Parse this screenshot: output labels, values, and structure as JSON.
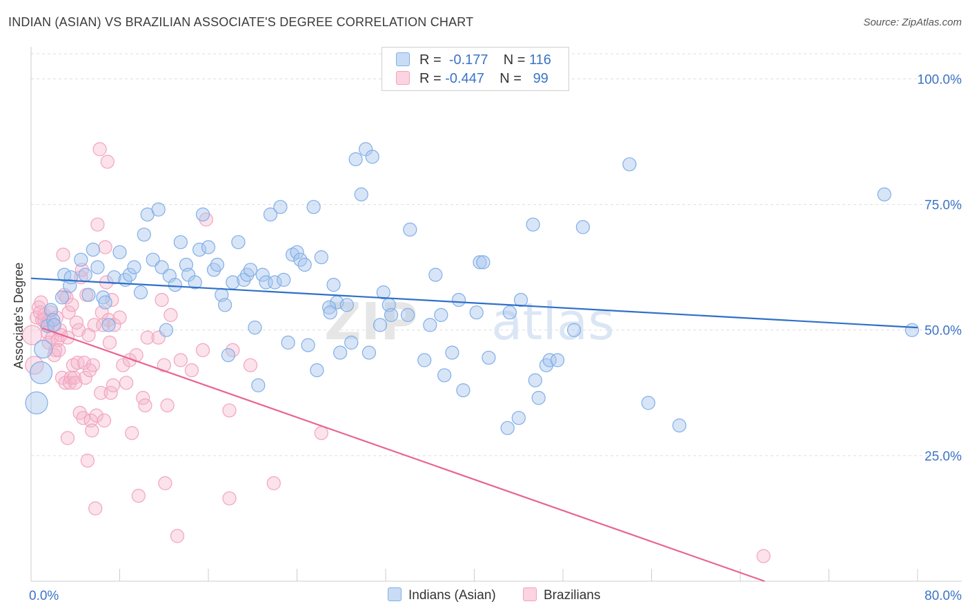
{
  "chart_data": {
    "type": "scatter",
    "title": "INDIAN (ASIAN) VS BRAZILIAN ASSOCIATE'S DEGREE CORRELATION CHART",
    "source": "Source: ZipAtlas.com",
    "xlabel": "",
    "ylabel": "Associate's Degree",
    "xlim": [
      0,
      80
    ],
    "ylim": [
      0,
      105
    ],
    "x_tick_labels": {
      "left": "0.0%",
      "right": "80.0%"
    },
    "y_ticks": [
      {
        "value": 100,
        "label": "100.0%"
      },
      {
        "value": 75,
        "label": "75.0%"
      },
      {
        "value": 50,
        "label": "50.0%"
      },
      {
        "value": 25,
        "label": "25.0%"
      }
    ],
    "watermark": "ZIPatlas",
    "legend": [
      {
        "r_label": "R =",
        "r_value": "-0.177",
        "n_label": "N =",
        "n_value": "116",
        "color": "#a9c6ee"
      },
      {
        "r_label": "R =",
        "r_value": "-0.447",
        "n_label": "N =",
        "n_value": "99",
        "color": "#f5b7cc"
      }
    ],
    "series": [
      {
        "name": "Indians (Asian)",
        "color": "#7faee8",
        "line_color": "#2f6fc9",
        "trend": {
          "x": [
            0,
            80
          ],
          "y": [
            60.3,
            50.5
          ]
        },
        "points": [
          [
            0.5,
            35.5
          ],
          [
            0.9,
            41.5
          ],
          [
            1.1,
            46.2
          ],
          [
            1.5,
            50.8
          ],
          [
            1.8,
            54.0
          ],
          [
            2.0,
            52.0
          ],
          [
            2.1,
            51.0
          ],
          [
            2.8,
            56.5
          ],
          [
            3.0,
            61.0
          ],
          [
            3.5,
            58.8
          ],
          [
            3.6,
            60.5
          ],
          [
            4.5,
            64.0
          ],
          [
            4.9,
            61.0
          ],
          [
            5.2,
            57.0
          ],
          [
            5.6,
            66.0
          ],
          [
            6.0,
            62.5
          ],
          [
            6.5,
            56.5
          ],
          [
            6.7,
            55.5
          ],
          [
            7.0,
            51.0
          ],
          [
            7.5,
            60.5
          ],
          [
            8.0,
            65.5
          ],
          [
            8.5,
            60.0
          ],
          [
            8.9,
            61.0
          ],
          [
            9.3,
            62.5
          ],
          [
            9.9,
            57.5
          ],
          [
            10.2,
            69.0
          ],
          [
            10.5,
            73.0
          ],
          [
            11.0,
            64.0
          ],
          [
            11.5,
            74.0
          ],
          [
            11.8,
            62.5
          ],
          [
            12.2,
            50.0
          ],
          [
            12.5,
            60.8
          ],
          [
            13.0,
            59.0
          ],
          [
            13.5,
            67.5
          ],
          [
            14.0,
            63.0
          ],
          [
            14.2,
            61.0
          ],
          [
            14.8,
            59.5
          ],
          [
            15.2,
            66.0
          ],
          [
            15.5,
            73.0
          ],
          [
            16.0,
            66.5
          ],
          [
            16.5,
            62.0
          ],
          [
            16.8,
            63.0
          ],
          [
            17.2,
            57.0
          ],
          [
            17.5,
            55.0
          ],
          [
            17.8,
            45.0
          ],
          [
            18.2,
            59.5
          ],
          [
            18.7,
            67.5
          ],
          [
            19.2,
            60.0
          ],
          [
            19.5,
            61.0
          ],
          [
            19.8,
            62.0
          ],
          [
            20.2,
            50.5
          ],
          [
            20.5,
            39.0
          ],
          [
            20.9,
            61.0
          ],
          [
            21.2,
            59.5
          ],
          [
            21.6,
            73.0
          ],
          [
            22.0,
            59.5
          ],
          [
            22.5,
            74.5
          ],
          [
            22.8,
            60.0
          ],
          [
            23.2,
            47.5
          ],
          [
            23.6,
            65.0
          ],
          [
            24.0,
            65.5
          ],
          [
            24.3,
            64.0
          ],
          [
            24.7,
            63.0
          ],
          [
            25.0,
            47.0
          ],
          [
            25.5,
            74.5
          ],
          [
            25.8,
            42.0
          ],
          [
            26.2,
            64.5
          ],
          [
            27.3,
            59.0
          ],
          [
            27.9,
            45.5
          ],
          [
            27.6,
            55.5
          ],
          [
            26.9,
            54.5
          ],
          [
            27.0,
            53.5
          ],
          [
            28.5,
            55.0
          ],
          [
            28.9,
            47.5
          ],
          [
            29.3,
            84.0
          ],
          [
            29.8,
            77.0
          ],
          [
            30.2,
            86.0
          ],
          [
            30.8,
            84.5
          ],
          [
            30.5,
            45.5
          ],
          [
            31.5,
            51.0
          ],
          [
            31.8,
            57.5
          ],
          [
            32.3,
            55.0
          ],
          [
            32.5,
            53.0
          ],
          [
            34.2,
            70.0
          ],
          [
            34.0,
            53.0
          ],
          [
            35.5,
            44.0
          ],
          [
            36.0,
            51.0
          ],
          [
            36.5,
            61.0
          ],
          [
            37.0,
            53.0
          ],
          [
            37.3,
            41.0
          ],
          [
            38.0,
            45.5
          ],
          [
            38.6,
            56.0
          ],
          [
            39.0,
            38.0
          ],
          [
            40.2,
            53.5
          ],
          [
            40.5,
            63.5
          ],
          [
            40.8,
            63.5
          ],
          [
            41.3,
            44.5
          ],
          [
            43.0,
            30.5
          ],
          [
            43.2,
            53.5
          ],
          [
            44.0,
            32.5
          ],
          [
            44.2,
            56.0
          ],
          [
            45.3,
            71.0
          ],
          [
            45.5,
            40.0
          ],
          [
            45.8,
            36.5
          ],
          [
            46.5,
            43.0
          ],
          [
            46.8,
            44.0
          ],
          [
            47.5,
            44.0
          ],
          [
            49.0,
            50.0
          ],
          [
            49.8,
            70.5
          ],
          [
            54.0,
            83.0
          ],
          [
            55.7,
            35.5
          ],
          [
            58.5,
            31.0
          ],
          [
            77.0,
            77.0
          ],
          [
            79.5,
            50.0
          ]
        ]
      },
      {
        "name": "Brazilians",
        "color": "#f2a3be",
        "line_color": "#e8648f",
        "trend": {
          "x": [
            1.0,
            66.2
          ],
          "y": [
            50.4,
            0.0
          ]
        },
        "points": [
          [
            0.1,
            49.0
          ],
          [
            0.3,
            43.0
          ],
          [
            0.5,
            52.5
          ],
          [
            0.7,
            54.5
          ],
          [
            0.9,
            55.5
          ],
          [
            1.0,
            52.0
          ],
          [
            1.2,
            53.0
          ],
          [
            1.4,
            51.0
          ],
          [
            1.5,
            49.5
          ],
          [
            1.6,
            47.5
          ],
          [
            1.7,
            52.0
          ],
          [
            1.8,
            53.5
          ],
          [
            1.9,
            48.5
          ],
          [
            2.0,
            51.0
          ],
          [
            2.1,
            45.0
          ],
          [
            2.2,
            46.0
          ],
          [
            2.3,
            52.5
          ],
          [
            2.4,
            48.0
          ],
          [
            2.5,
            46.0
          ],
          [
            2.6,
            50.0
          ],
          [
            2.7,
            49.0
          ],
          [
            2.8,
            40.5
          ],
          [
            2.9,
            65.0
          ],
          [
            3.0,
            57.0
          ],
          [
            3.1,
            39.5
          ],
          [
            3.2,
            56.5
          ],
          [
            3.3,
            28.5
          ],
          [
            3.4,
            53.5
          ],
          [
            3.5,
            39.5
          ],
          [
            3.6,
            40.5
          ],
          [
            3.7,
            55.0
          ],
          [
            3.8,
            43.0
          ],
          [
            3.9,
            40.5
          ],
          [
            4.0,
            39.5
          ],
          [
            4.1,
            51.5
          ],
          [
            4.2,
            43.5
          ],
          [
            4.3,
            50.0
          ],
          [
            4.4,
            33.5
          ],
          [
            4.5,
            60.5
          ],
          [
            4.6,
            62.0
          ],
          [
            4.7,
            32.5
          ],
          [
            4.8,
            43.5
          ],
          [
            4.9,
            40.5
          ],
          [
            5.0,
            57.0
          ],
          [
            5.1,
            24.0
          ],
          [
            5.2,
            49.0
          ],
          [
            5.3,
            42.0
          ],
          [
            5.4,
            32.0
          ],
          [
            5.5,
            30.0
          ],
          [
            5.6,
            43.0
          ],
          [
            5.7,
            51.0
          ],
          [
            5.8,
            14.5
          ],
          [
            5.9,
            33.0
          ],
          [
            6.0,
            71.0
          ],
          [
            6.2,
            86.0
          ],
          [
            6.3,
            37.5
          ],
          [
            6.4,
            53.5
          ],
          [
            6.5,
            51.0
          ],
          [
            6.6,
            32.0
          ],
          [
            6.7,
            66.5
          ],
          [
            6.8,
            59.5
          ],
          [
            6.9,
            83.5
          ],
          [
            7.0,
            52.0
          ],
          [
            7.1,
            47.5
          ],
          [
            7.2,
            37.5
          ],
          [
            7.3,
            56.0
          ],
          [
            7.4,
            39.0
          ],
          [
            7.5,
            51.0
          ],
          [
            8.0,
            52.5
          ],
          [
            8.3,
            43.0
          ],
          [
            8.6,
            39.5
          ],
          [
            8.9,
            44.0
          ],
          [
            9.1,
            29.5
          ],
          [
            9.5,
            45.0
          ],
          [
            9.7,
            17.0
          ],
          [
            10.1,
            36.5
          ],
          [
            10.3,
            35.0
          ],
          [
            10.5,
            48.5
          ],
          [
            11.5,
            48.5
          ],
          [
            11.8,
            56.0
          ],
          [
            12.0,
            43.0
          ],
          [
            12.1,
            19.5
          ],
          [
            12.3,
            35.0
          ],
          [
            12.6,
            53.0
          ],
          [
            13.2,
            9.0
          ],
          [
            13.5,
            44.0
          ],
          [
            14.5,
            42.0
          ],
          [
            15.5,
            46.0
          ],
          [
            15.8,
            72.0
          ],
          [
            17.9,
            16.5
          ],
          [
            17.9,
            34.0
          ],
          [
            18.2,
            46.0
          ],
          [
            19.8,
            43.0
          ],
          [
            21.9,
            19.5
          ],
          [
            26.2,
            29.5
          ],
          [
            66.1,
            5.0
          ],
          [
            1.2,
            52.0
          ],
          [
            0.8,
            53.5
          ],
          [
            3.3,
            48.5
          ]
        ]
      }
    ]
  }
}
